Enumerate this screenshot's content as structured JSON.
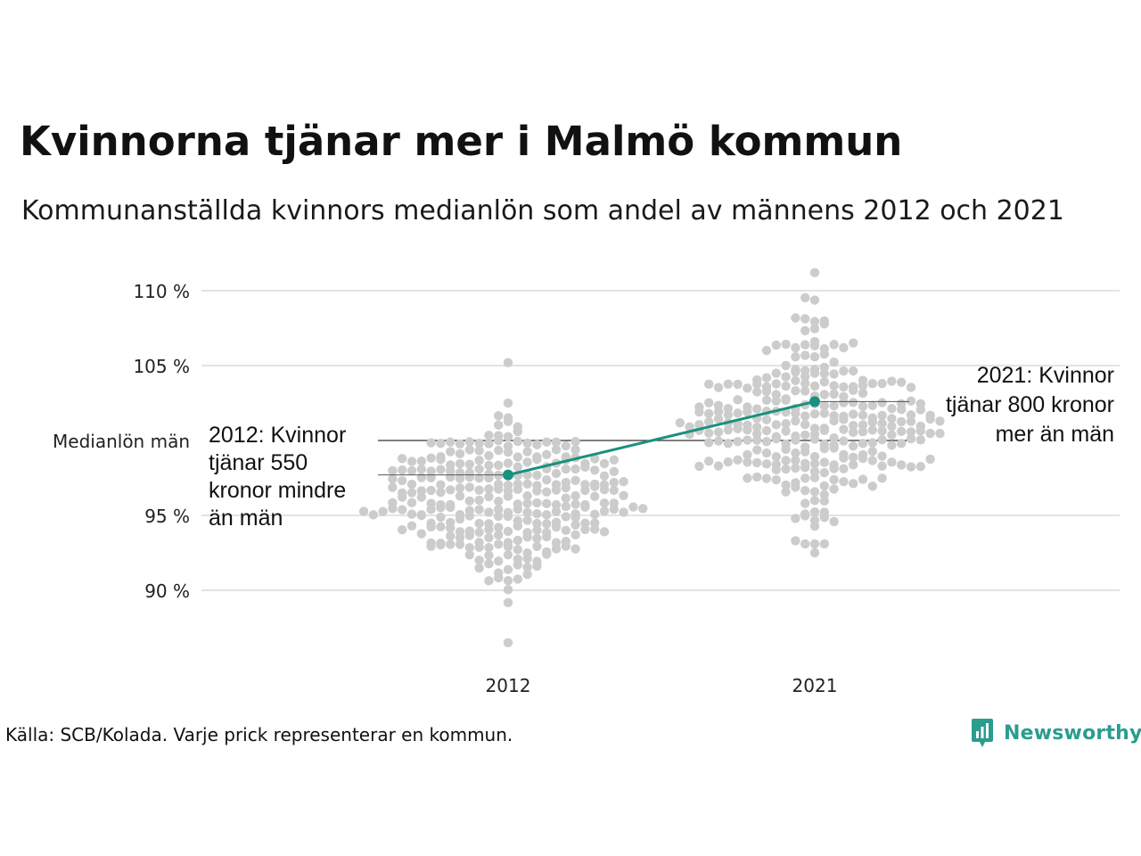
{
  "title": "Kvinnorna tjänar mer i Malmö kommun",
  "subtitle": "Kommunanställda kvinnors medianlön som andel av männens 2012 och 2021",
  "footer": "Källa: SCB/Kolada. Varje prick representerar en kommun.",
  "brand": {
    "name": "Newsworthy",
    "icon": "newsworthy-logo-icon",
    "color": "#2a9d8f"
  },
  "colors": {
    "dots": "#cccccc",
    "highlight": "#1a9080",
    "grid": "#e3e3e3",
    "reference": "#333333"
  },
  "chart_data": {
    "type": "scatter",
    "x_categories": [
      "2012",
      "2021"
    ],
    "y_ticks": [
      {
        "value": 90,
        "label": "90 %"
      },
      {
        "value": 95,
        "label": "95 %"
      },
      {
        "value": 105,
        "label": "105 %"
      },
      {
        "value": 110,
        "label": "110 %"
      }
    ],
    "ylim": [
      87,
      111.5
    ],
    "grid": true,
    "reference_line": {
      "value": 100,
      "label": "Medianlön män"
    },
    "highlight_series": {
      "points": [
        {
          "x": "2012",
          "y": 97.7
        },
        {
          "x": "2021",
          "y": 102.6
        }
      ],
      "annotations": [
        "2012: Kvinnor tjänar 550 kronor mindre än män",
        "2021: Kvinnor tjänar 800 kronor mer än män"
      ]
    },
    "distributions": [
      {
        "x": "2012",
        "count": 290,
        "mean": 96.0,
        "sd": 2.6,
        "min": 86.5,
        "max": 105.2
      },
      {
        "x": "2021",
        "count": 290,
        "mean": 101.2,
        "sd": 3.0,
        "min": 92.5,
        "max": 111.2
      }
    ]
  }
}
